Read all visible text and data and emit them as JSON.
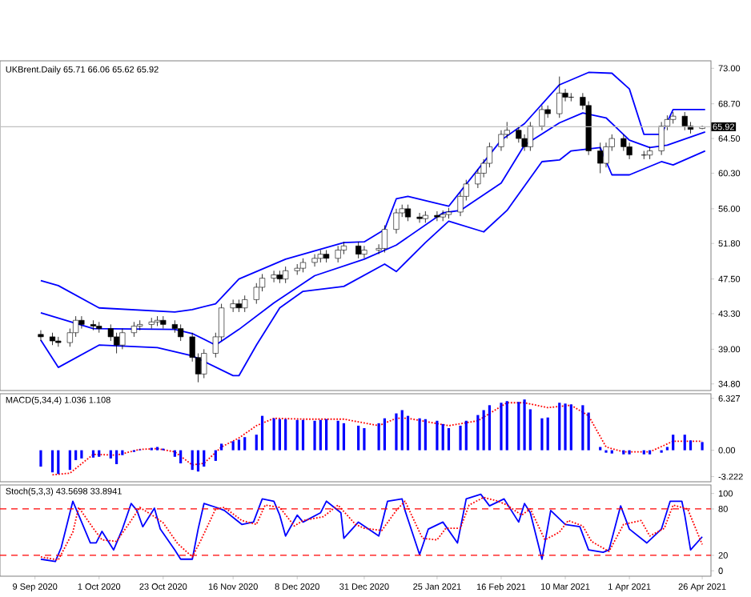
{
  "chart_data": [
    {
      "type": "candlestick",
      "title": "UKBrent.Daily  65.71 66.06 65.62 65.92",
      "xlim": [
        "2020-08-28",
        "2021-04-29"
      ],
      "ylim": [
        34.0,
        73.9
      ],
      "tick_labels": "y",
      "yticks": [
        {
          "value": 73,
          "label": "73.00"
        },
        {
          "value": 68.7,
          "label": "68.70"
        },
        {
          "value": 64.5,
          "label": "64.50"
        },
        {
          "value": 60.3,
          "label": "60.30"
        },
        {
          "value": 56,
          "label": "56.00"
        },
        {
          "value": 51.8,
          "label": "51.80"
        },
        {
          "value": 47.5,
          "label": "47.50"
        },
        {
          "value": 43.3,
          "label": "43.30"
        },
        {
          "value": 39,
          "label": "39.00"
        },
        {
          "value": 34.8,
          "label": "34.80"
        }
      ],
      "x": [
        "2020-09-11",
        "2020-09-15",
        "2020-09-17",
        "2020-09-21",
        "2020-09-23",
        "2020-09-25",
        "2020-09-29",
        "2020-10-01",
        "2020-10-05",
        "2020-10-07",
        "2020-10-09",
        "2020-10-13",
        "2020-10-15",
        "2020-10-19",
        "2020-10-21",
        "2020-10-23",
        "2020-10-27",
        "2020-10-29",
        "2020-11-02",
        "2020-11-04",
        "2020-11-06",
        "2020-11-10",
        "2020-11-12",
        "2020-11-16",
        "2020-11-18",
        "2020-11-20",
        "2020-11-24",
        "2020-11-26",
        "2020-11-30",
        "2020-12-02",
        "2020-12-04",
        "2020-12-08",
        "2020-12-10",
        "2020-12-14",
        "2020-12-16",
        "2020-12-18",
        "2020-12-22",
        "2020-12-24",
        "2020-12-29",
        "2020-12-31",
        "2021-01-05",
        "2021-01-07",
        "2021-01-11",
        "2021-01-13",
        "2021-01-15",
        "2021-01-19",
        "2021-01-21",
        "2021-01-25",
        "2021-01-27",
        "2021-01-29",
        "2021-02-02",
        "2021-02-04",
        "2021-02-08",
        "2021-02-10",
        "2021-02-12",
        "2021-02-16",
        "2021-02-18",
        "2021-02-22",
        "2021-02-24",
        "2021-02-26",
        "2021-03-02",
        "2021-03-04",
        "2021-03-08",
        "2021-03-10",
        "2021-03-12",
        "2021-03-16",
        "2021-03-18",
        "2021-03-22",
        "2021-03-24",
        "2021-03-26",
        "2021-03-30",
        "2021-04-01",
        "2021-04-06",
        "2021-04-08",
        "2021-04-12",
        "2021-04-14",
        "2021-04-16",
        "2021-04-20",
        "2021-04-22",
        "2021-04-26"
      ],
      "ohlc": [
        [
          40.8,
          41.3,
          40.0,
          40.5
        ],
        [
          40.5,
          41.0,
          39.5,
          40.0
        ],
        [
          40.0,
          40.5,
          39.3,
          39.8
        ],
        [
          39.8,
          41.5,
          39.3,
          41.0
        ],
        [
          41.0,
          43.0,
          40.5,
          42.5
        ],
        [
          42.5,
          43.0,
          41.5,
          42.0
        ],
        [
          42.0,
          42.5,
          41.3,
          41.8
        ],
        [
          41.8,
          42.3,
          41.0,
          41.5
        ],
        [
          41.5,
          42.0,
          40.0,
          40.5
        ],
        [
          40.5,
          41.0,
          38.5,
          39.5
        ],
        [
          39.5,
          41.5,
          39.0,
          41.0
        ],
        [
          41.0,
          42.3,
          40.5,
          41.8
        ],
        [
          41.8,
          42.5,
          41.3,
          42.0
        ],
        [
          42.0,
          42.8,
          41.5,
          42.3
        ],
        [
          42.3,
          43.0,
          41.8,
          42.5
        ],
        [
          42.5,
          43.0,
          41.5,
          42.0
        ],
        [
          42.0,
          42.5,
          41.0,
          41.5
        ],
        [
          41.5,
          42.0,
          40.0,
          40.5
        ],
        [
          40.5,
          41.0,
          37.5,
          38.0
        ],
        [
          38.0,
          38.5,
          35.0,
          36.0
        ],
        [
          36.0,
          39.0,
          35.5,
          38.5
        ],
        [
          38.5,
          41.0,
          38.0,
          40.5
        ],
        [
          40.5,
          44.5,
          40.0,
          44.0
        ],
        [
          44.0,
          45.0,
          43.5,
          44.5
        ],
        [
          44.5,
          45.0,
          43.5,
          44.0
        ],
        [
          44.0,
          45.5,
          43.5,
          45.0
        ],
        [
          45.0,
          47.0,
          44.5,
          46.5
        ],
        [
          46.5,
          48.1,
          46.0,
          47.6
        ],
        [
          47.6,
          48.5,
          47.1,
          48.0
        ],
        [
          48.0,
          48.5,
          47.0,
          47.5
        ],
        [
          47.5,
          49.0,
          47.0,
          48.5
        ],
        [
          48.5,
          49.3,
          48.0,
          48.8
        ],
        [
          48.8,
          50.0,
          48.3,
          49.5
        ],
        [
          49.5,
          50.5,
          49.0,
          50.0
        ],
        [
          50.0,
          51.0,
          49.5,
          50.5
        ],
        [
          50.5,
          51.0,
          49.5,
          50.0
        ],
        [
          50.0,
          51.5,
          49.5,
          51.0
        ],
        [
          51.0,
          52.0,
          50.5,
          51.5
        ],
        [
          51.5,
          52.0,
          50.0,
          50.5
        ],
        [
          50.5,
          51.5,
          50.0,
          51.0
        ],
        [
          51.0,
          51.7,
          50.5,
          51.2
        ],
        [
          51.2,
          54.0,
          50.7,
          53.5
        ],
        [
          53.5,
          56.0,
          53.0,
          55.5
        ],
        [
          55.5,
          56.5,
          55.0,
          56.0
        ],
        [
          56.0,
          56.5,
          54.5,
          55.0
        ],
        [
          55.0,
          55.5,
          54.3,
          54.8
        ],
        [
          54.8,
          55.7,
          54.3,
          55.2
        ],
        [
          55.2,
          55.7,
          54.5,
          55.0
        ],
        [
          55.0,
          55.8,
          54.5,
          55.3
        ],
        [
          55.3,
          56.1,
          54.8,
          55.6
        ],
        [
          55.6,
          58.0,
          55.1,
          57.5
        ],
        [
          57.5,
          59.5,
          57.0,
          59.0
        ],
        [
          59.0,
          60.8,
          58.5,
          60.3
        ],
        [
          60.3,
          62.0,
          59.8,
          61.5
        ],
        [
          61.5,
          64.0,
          61.0,
          63.5
        ],
        [
          63.5,
          65.5,
          63.0,
          65.0
        ],
        [
          65.0,
          66.5,
          64.5,
          65.5
        ],
        [
          65.5,
          66.0,
          64.0,
          64.5
        ],
        [
          64.5,
          65.0,
          63.0,
          63.5
        ],
        [
          63.5,
          66.5,
          63.0,
          66.0
        ],
        [
          66.0,
          68.5,
          65.5,
          68.0
        ],
        [
          68.0,
          68.5,
          67.0,
          67.5
        ],
        [
          67.5,
          72.0,
          67.0,
          70.0
        ],
        [
          70.0,
          70.5,
          69.0,
          69.5
        ],
        [
          69.5,
          70.0,
          69.0,
          69.5
        ],
        [
          69.5,
          70.0,
          68.0,
          68.5
        ],
        [
          68.5,
          69.0,
          62.5,
          63.0
        ],
        [
          63.0,
          64.0,
          60.3,
          61.5
        ],
        [
          61.5,
          64.0,
          61.0,
          63.5
        ],
        [
          63.5,
          65.0,
          63.0,
          64.5
        ],
        [
          64.5,
          65.0,
          63.0,
          63.5
        ],
        [
          63.5,
          64.0,
          62.0,
          62.5
        ],
        [
          62.5,
          63.0,
          62.0,
          62.5
        ],
        [
          62.5,
          63.5,
          62.0,
          63.0
        ],
        [
          63.0,
          66.5,
          62.5,
          66.0
        ],
        [
          66.0,
          67.3,
          65.5,
          66.8
        ],
        [
          66.8,
          67.7,
          66.3,
          67.2
        ],
        [
          67.2,
          67.7,
          65.5,
          66.0
        ],
        [
          66.0,
          66.5,
          65.1,
          65.6
        ],
        [
          65.71,
          66.06,
          65.62,
          65.92
        ]
      ],
      "series": [
        {
          "type": "line",
          "color": "#0000ff",
          "x": [
            "2020-09-11",
            "2020-09-17",
            "2020-10-01",
            "2020-10-27",
            "2020-11-02",
            "2020-11-10",
            "2020-11-18",
            "2020-12-04",
            "2020-12-24",
            "2020-12-31",
            "2021-01-07",
            "2021-01-11",
            "2021-01-15",
            "2021-01-29",
            "2021-02-16",
            "2021-02-24",
            "2021-03-08",
            "2021-03-18",
            "2021-03-26",
            "2021-04-01",
            "2021-04-06",
            "2021-04-12",
            "2021-04-16",
            "2021-04-27"
          ],
          "values": [
            47.3,
            46.7,
            44.0,
            43.5,
            43.8,
            44.5,
            47.5,
            49.9,
            51.9,
            52.0,
            53.5,
            57.2,
            57.5,
            56.3,
            64.3,
            66.3,
            71.0,
            72.5,
            72.4,
            70.5,
            65.0,
            65.0,
            68.0,
            68.0
          ]
        },
        {
          "type": "line",
          "color": "#0000ff",
          "x": [
            "2020-09-11",
            "2020-09-29",
            "2020-10-27",
            "2020-11-02",
            "2020-11-10",
            "2020-11-18",
            "2020-11-30",
            "2020-12-14",
            "2020-12-31",
            "2021-01-11",
            "2021-01-27",
            "2021-02-02",
            "2021-02-16",
            "2021-02-24",
            "2021-03-08",
            "2021-03-16",
            "2021-03-24",
            "2021-04-01",
            "2021-04-08",
            "2021-04-14",
            "2021-04-27"
          ],
          "values": [
            43.4,
            41.5,
            41.4,
            40.9,
            39.5,
            41.4,
            44.6,
            47.9,
            49.9,
            51.6,
            55.5,
            55.8,
            59.1,
            63.7,
            66.4,
            67.6,
            67.0,
            64.3,
            63.4,
            63.7,
            65.3
          ]
        },
        {
          "type": "line",
          "color": "#0000ff",
          "x": [
            "2020-09-11",
            "2020-09-17",
            "2020-10-01",
            "2020-10-21",
            "2020-11-02",
            "2020-11-16",
            "2020-11-18",
            "2020-11-24",
            "2020-12-02",
            "2020-12-10",
            "2020-12-24",
            "2021-01-07",
            "2021-01-11",
            "2021-01-21",
            "2021-01-29",
            "2021-02-10",
            "2021-02-18",
            "2021-03-02",
            "2021-03-08",
            "2021-03-12",
            "2021-03-22",
            "2021-03-26",
            "2021-04-01",
            "2021-04-12",
            "2021-04-16",
            "2021-04-27"
          ],
          "values": [
            40.1,
            36.8,
            39.5,
            39.2,
            38.2,
            35.8,
            35.8,
            39.5,
            44.0,
            46.0,
            46.6,
            49.3,
            48.4,
            51.9,
            54.5,
            53.2,
            55.8,
            61.7,
            61.9,
            63.0,
            63.4,
            60.1,
            60.1,
            61.7,
            61.3,
            63.0
          ]
        }
      ],
      "ref_lines": [
        {
          "axis": "y",
          "value": 65.92,
          "label": "65.92",
          "color": "#c0c0c0",
          "line_style": "solid"
        }
      ]
    },
    {
      "type": "bar",
      "title": "MACD(5,34,4) 1.036 1.108",
      "xlim": [
        "2020-08-28",
        "2021-04-29"
      ],
      "ylim": [
        -3.85,
        6.9
      ],
      "tick_labels": "y",
      "yticks": [
        6.327,
        {
          "value": 0,
          "label": "0.00"
        },
        -3.222
      ],
      "x": [
        "2020-09-11",
        "2020-09-15",
        "2020-09-17",
        "2020-09-21",
        "2020-09-23",
        "2020-09-25",
        "2020-09-29",
        "2020-10-01",
        "2020-10-05",
        "2020-10-07",
        "2020-10-09",
        "2020-10-13",
        "2020-10-15",
        "2020-10-19",
        "2020-10-21",
        "2020-10-23",
        "2020-10-27",
        "2020-10-29",
        "2020-11-02",
        "2020-11-04",
        "2020-11-06",
        "2020-11-10",
        "2020-11-12",
        "2020-11-16",
        "2020-11-18",
        "2020-11-20",
        "2020-11-24",
        "2020-11-26",
        "2020-11-30",
        "2020-12-02",
        "2020-12-04",
        "2020-12-08",
        "2020-12-10",
        "2020-12-14",
        "2020-12-16",
        "2020-12-18",
        "2020-12-22",
        "2020-12-24",
        "2020-12-29",
        "2020-12-31",
        "2021-01-05",
        "2021-01-07",
        "2021-01-11",
        "2021-01-13",
        "2021-01-15",
        "2021-01-19",
        "2021-01-21",
        "2021-01-25",
        "2021-01-27",
        "2021-01-29",
        "2021-02-02",
        "2021-02-04",
        "2021-02-08",
        "2021-02-10",
        "2021-02-12",
        "2021-02-16",
        "2021-02-18",
        "2021-02-22",
        "2021-02-24",
        "2021-02-26",
        "2021-03-02",
        "2021-03-04",
        "2021-03-08",
        "2021-03-10",
        "2021-03-12",
        "2021-03-16",
        "2021-03-18",
        "2021-03-22",
        "2021-03-24",
        "2021-03-26",
        "2021-03-30",
        "2021-04-01",
        "2021-04-06",
        "2021-04-08",
        "2021-04-12",
        "2021-04-14",
        "2021-04-16",
        "2021-04-20",
        "2021-04-22",
        "2021-04-26"
      ],
      "series": [
        {
          "type": "bar",
          "color": "#0000ff",
          "values": [
            -2.0,
            -2.7,
            -2.9,
            -2.4,
            -1.2,
            -1.0,
            -0.9,
            -0.8,
            -1.0,
            -1.7,
            -0.6,
            -0.2,
            0.1,
            0.3,
            0.4,
            0.2,
            -0.8,
            -1.6,
            -2.4,
            -2.6,
            -2.0,
            -1.3,
            0.8,
            1.1,
            1.3,
            1.6,
            1.9,
            4.2,
            3.9,
            3.8,
            3.8,
            3.7,
            3.7,
            3.6,
            3.7,
            3.8,
            3.6,
            3.3,
            3.0,
            2.7,
            3.3,
            3.9,
            4.5,
            4.9,
            4.2,
            3.9,
            3.8,
            3.6,
            3.2,
            2.7,
            3.0,
            3.6,
            4.3,
            4.9,
            5.5,
            5.8,
            6.0,
            5.9,
            6.2,
            5.0,
            3.9,
            4.0,
            5.8,
            5.7,
            5.6,
            5.5,
            4.6,
            0.4,
            -0.3,
            -0.4,
            -0.5,
            -0.5,
            -0.5,
            -0.5,
            -0.3,
            0.4,
            1.9,
            1.9,
            1.2,
            1.0
          ]
        },
        {
          "type": "line",
          "color": "#ff0000",
          "line_style": "dotted",
          "x": [
            "2020-09-15",
            "2020-09-21",
            "2020-09-29",
            "2020-10-07",
            "2020-10-15",
            "2020-10-21",
            "2020-10-27",
            "2020-11-02",
            "2020-11-06",
            "2020-11-12",
            "2020-11-18",
            "2020-11-24",
            "2020-11-30",
            "2020-12-10",
            "2020-12-24",
            "2021-01-05",
            "2021-01-11",
            "2021-01-15",
            "2021-01-29",
            "2021-02-08",
            "2021-02-18",
            "2021-02-24",
            "2021-03-04",
            "2021-03-12",
            "2021-03-18",
            "2021-03-24",
            "2021-03-30",
            "2021-04-08",
            "2021-04-16",
            "2021-04-26"
          ],
          "values": [
            -3.0,
            -2.8,
            -0.5,
            -0.6,
            0.1,
            0.2,
            -0.2,
            -1.8,
            -1.6,
            0.4,
            1.5,
            3.0,
            3.9,
            3.8,
            3.8,
            3.0,
            3.9,
            3.9,
            3.0,
            3.6,
            5.8,
            5.8,
            5.2,
            5.5,
            4.2,
            0.4,
            -0.2,
            -0.2,
            1.1,
            1.1
          ]
        }
      ]
    },
    {
      "type": "line",
      "title": "Stoch(5,3,3) 43.5698 33.8941",
      "xlim": [
        "2020-08-28",
        "2021-04-29"
      ],
      "ylim": [
        -7,
        111
      ],
      "yticks": [
        100,
        80,
        20,
        0
      ],
      "xticks": [
        {
          "value": "2020-09-09",
          "label": "9 Sep 2020"
        },
        {
          "value": "2020-10-01",
          "label": "1 Oct 2020"
        },
        {
          "value": "2020-10-23",
          "label": "23 Oct 2020"
        },
        {
          "value": "2020-11-16",
          "label": "16 Nov 2020"
        },
        {
          "value": "2020-12-08",
          "label": "8 Dec 2020"
        },
        {
          "value": "2020-12-31",
          "label": "31 Dec 2020"
        },
        {
          "value": "2021-01-25",
          "label": "25 Jan 2021"
        },
        {
          "value": "2021-02-16",
          "label": "16 Feb 2021"
        },
        {
          "value": "2021-03-10",
          "label": "10 Mar 2021"
        },
        {
          "value": "2021-04-01",
          "label": "1 Apr 2021"
        },
        {
          "value": "2021-04-26",
          "label": "26 Apr 2021"
        }
      ],
      "series": [
        {
          "color": "#0000ff",
          "line_style": "solid",
          "x": [
            "2020-09-11",
            "2020-09-16",
            "2020-09-18",
            "2020-09-22",
            "2020-09-24",
            "2020-09-28",
            "2020-09-30",
            "2020-10-02",
            "2020-10-06",
            "2020-10-09",
            "2020-10-12",
            "2020-10-14",
            "2020-10-16",
            "2020-10-20",
            "2020-10-22",
            "2020-10-27",
            "2020-10-29",
            "2020-11-02",
            "2020-11-04",
            "2020-11-06",
            "2020-11-11",
            "2020-11-13",
            "2020-11-17",
            "2020-11-19",
            "2020-11-23",
            "2020-11-26",
            "2020-11-30",
            "2020-12-02",
            "2020-12-04",
            "2020-12-08",
            "2020-12-10",
            "2020-12-16",
            "2020-12-18",
            "2020-12-23",
            "2020-12-24",
            "2020-12-29",
            "2021-01-05",
            "2021-01-08",
            "2021-01-13",
            "2021-01-14",
            "2021-01-19",
            "2021-01-22",
            "2021-01-27",
            "2021-02-01",
            "2021-02-04",
            "2021-02-09",
            "2021-02-12",
            "2021-02-17",
            "2021-02-22",
            "2021-02-24",
            "2021-02-26",
            "2021-03-02",
            "2021-03-05",
            "2021-03-10",
            "2021-03-15",
            "2021-03-18",
            "2021-03-23",
            "2021-03-25",
            "2021-03-29",
            "2021-04-01",
            "2021-04-07",
            "2021-04-12",
            "2021-04-15",
            "2021-04-19",
            "2021-04-20",
            "2021-04-22",
            "2021-04-26"
          ],
          "values": [
            15,
            12,
            30,
            90,
            72,
            36,
            36,
            51,
            27,
            54,
            87,
            78,
            57,
            81,
            54,
            27,
            15,
            15,
            54,
            87,
            81,
            78,
            66,
            60,
            63,
            93,
            90,
            72,
            45,
            72,
            63,
            75,
            90,
            75,
            42,
            63,
            45,
            90,
            93,
            78,
            21,
            54,
            63,
            36,
            93,
            99,
            84,
            93,
            63,
            87,
            75,
            15,
            78,
            60,
            57,
            27,
            24,
            27,
            84,
            54,
            36,
            54,
            90,
            90,
            72,
            27,
            44
          ]
        },
        {
          "color": "#ff0000",
          "line_style": "dotted",
          "x": [
            "2020-09-11",
            "2020-09-17",
            "2020-09-22",
            "2020-09-24",
            "2020-09-29",
            "2020-10-02",
            "2020-10-07",
            "2020-10-12",
            "2020-10-15",
            "2020-10-20",
            "2020-10-23",
            "2020-10-28",
            "2020-11-02",
            "2020-11-05",
            "2020-11-10",
            "2020-11-13",
            "2020-11-19",
            "2020-11-24",
            "2020-11-27",
            "2020-12-02",
            "2020-12-07",
            "2020-12-10",
            "2020-12-17",
            "2020-12-22",
            "2020-12-28",
            "2020-12-31",
            "2021-01-06",
            "2021-01-11",
            "2021-01-14",
            "2021-01-20",
            "2021-01-25",
            "2021-01-28",
            "2021-02-02",
            "2021-02-05",
            "2021-02-10",
            "2021-02-15",
            "2021-02-18",
            "2021-02-23",
            "2021-02-26",
            "2021-03-03",
            "2021-03-08",
            "2021-03-11",
            "2021-03-16",
            "2021-03-19",
            "2021-03-25",
            "2021-03-30",
            "2021-04-05",
            "2021-04-08",
            "2021-04-13",
            "2021-04-16",
            "2021-04-21",
            "2021-04-26"
          ],
          "values": [
            18,
            14,
            50,
            82,
            55,
            40,
            38,
            65,
            82,
            70,
            62,
            35,
            18,
            40,
            80,
            82,
            65,
            60,
            85,
            82,
            58,
            65,
            70,
            85,
            60,
            55,
            52,
            78,
            90,
            42,
            40,
            55,
            55,
            85,
            95,
            90,
            85,
            72,
            80,
            40,
            50,
            65,
            58,
            38,
            25,
            60,
            65,
            45,
            55,
            85,
            80,
            34
          ]
        }
      ],
      "ref_lines": [
        {
          "axis": "y",
          "value": 80,
          "color": "#ff0000",
          "line_style": "dashed"
        },
        {
          "axis": "y",
          "value": 20,
          "color": "#ff0000",
          "line_style": "dashed"
        }
      ]
    }
  ]
}
